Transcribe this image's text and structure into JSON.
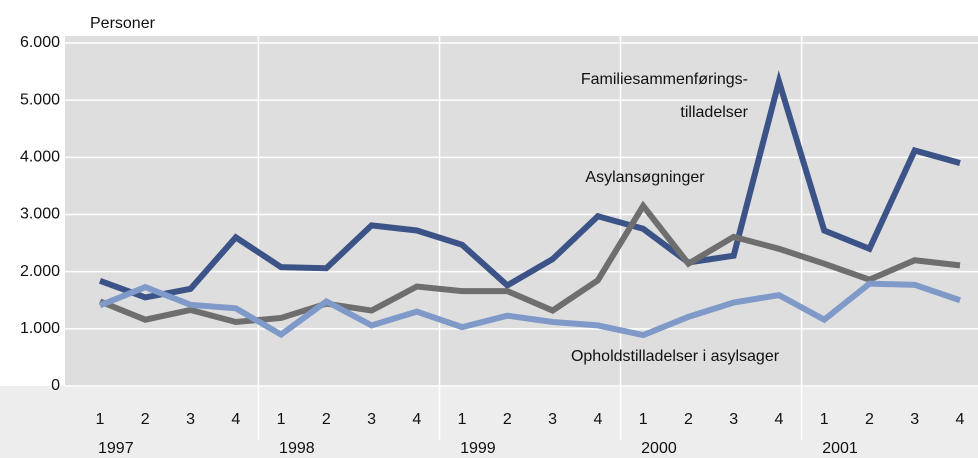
{
  "chart_data": {
    "type": "line",
    "y_axis_label": "Personer",
    "categories": [
      "1",
      "2",
      "3",
      "4",
      "1",
      "2",
      "3",
      "4",
      "1",
      "2",
      "3",
      "4",
      "1",
      "2",
      "3",
      "4",
      "1",
      "2",
      "3",
      "4"
    ],
    "category_groups": [
      "1997",
      "1998",
      "1999",
      "2000",
      "2001"
    ],
    "ylim": [
      0,
      6000
    ],
    "yticks": [
      0,
      {
        "value": 1000,
        "label": "1.000"
      },
      {
        "value": 2000,
        "label": "2.000"
      },
      {
        "value": 3000,
        "label": "3.000"
      },
      {
        "value": 4000,
        "label": "4.000"
      },
      {
        "value": 5000,
        "label": "5.000"
      },
      {
        "value": 6000,
        "label": "6.000"
      }
    ],
    "grid": true,
    "series": [
      {
        "name_lines": [
          "Familiesammenførings-",
          "tilladelser"
        ],
        "color": "#3c5387",
        "values": [
          1840,
          1550,
          1700,
          2600,
          2080,
          2060,
          2810,
          2720,
          2470,
          1760,
          2220,
          2970,
          2750,
          2160,
          2280,
          5330,
          2720,
          2400,
          4120,
          3900
        ]
      },
      {
        "name_lines": [
          "Asylansøgninger"
        ],
        "color": "#6e6e6e",
        "values": [
          1480,
          1160,
          1330,
          1120,
          1190,
          1440,
          1320,
          1740,
          1660,
          1660,
          1320,
          1850,
          3150,
          2140,
          2610,
          2400,
          2140,
          1860,
          2200,
          2110
        ]
      },
      {
        "name_lines": [
          "Opholdstilladelser i asylsager"
        ],
        "color": "#7f99c9",
        "values": [
          1410,
          1730,
          1420,
          1360,
          900,
          1480,
          1060,
          1300,
          1030,
          1230,
          1120,
          1060,
          890,
          1210,
          1460,
          1590,
          1160,
          1790,
          1770,
          1500
        ]
      }
    ]
  }
}
